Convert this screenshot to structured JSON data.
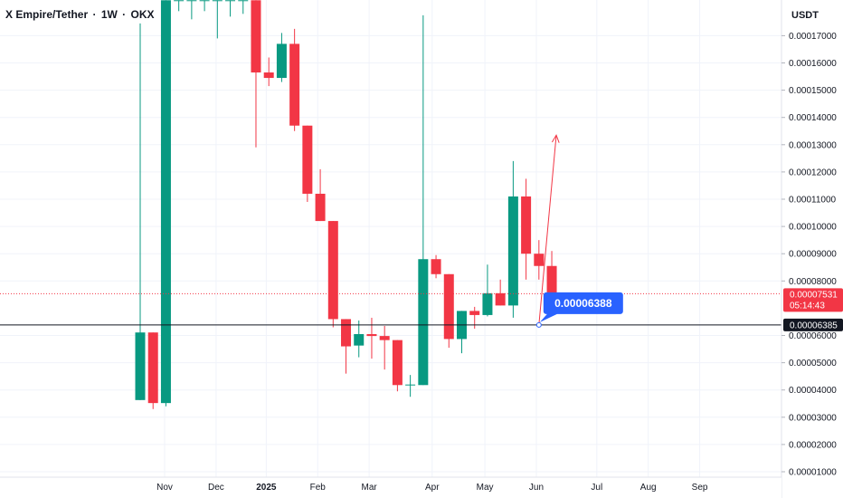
{
  "header": {
    "symbol": "X Empire/Tether",
    "interval": "1W",
    "exchange": "OKX"
  },
  "axis": {
    "currency": "USDT"
  },
  "colors": {
    "up": "#26a69a",
    "up_body": "#089981",
    "down": "#f23645",
    "grid": "#f0f3fa",
    "current_line": "#f23645",
    "callout": "#2962ff"
  },
  "chart_data": {
    "type": "candlestick",
    "ylim": [
      1e-05,
      0.000183
    ],
    "grid": true,
    "y_ticks": [
      {
        "value": 0.00017,
        "label": "0.00017000"
      },
      {
        "value": 0.00016,
        "label": "0.00016000"
      },
      {
        "value": 0.00015,
        "label": "0.00015000"
      },
      {
        "value": 0.00014,
        "label": "0.00014000"
      },
      {
        "value": 0.00013,
        "label": "0.00013000"
      },
      {
        "value": 0.00012,
        "label": "0.00012000"
      },
      {
        "value": 0.00011,
        "label": "0.00011000"
      },
      {
        "value": 0.0001,
        "label": "0.00010000"
      },
      {
        "value": 9e-05,
        "label": "0.00009000"
      },
      {
        "value": 8e-05,
        "label": "0.00008000"
      },
      {
        "value": 6e-05,
        "label": "0.00006000"
      },
      {
        "value": 5e-05,
        "label": "0.00005000"
      },
      {
        "value": 4e-05,
        "label": "0.00004000"
      },
      {
        "value": 3e-05,
        "label": "0.00003000"
      },
      {
        "value": 2e-05,
        "label": "0.00002000"
      },
      {
        "value": 1e-05,
        "label": "0.00001000"
      }
    ],
    "x_ticks": [
      {
        "label": "Nov",
        "index": 1.9,
        "bold": false
      },
      {
        "label": "Dec",
        "index": 5.9,
        "bold": false
      },
      {
        "label": "2025",
        "index": 9.8,
        "bold": true
      },
      {
        "label": "Feb",
        "index": 13.8,
        "bold": false
      },
      {
        "label": "Mar",
        "index": 17.8,
        "bold": false
      },
      {
        "label": "Apr",
        "index": 22.7,
        "bold": false
      },
      {
        "label": "May",
        "index": 26.8,
        "bold": false
      },
      {
        "label": "Jun",
        "index": 30.8,
        "bold": false
      },
      {
        "label": "Jul",
        "index": 35.5,
        "bold": false
      },
      {
        "label": "Aug",
        "index": 39.5,
        "bold": false
      },
      {
        "label": "Sep",
        "index": 43.5,
        "bold": false
      }
    ],
    "candles": [
      {
        "o": 3.63e-05,
        "h": 0.0001745,
        "l": 3.63e-05,
        "c": 6.11e-05
      },
      {
        "o": 6.11e-05,
        "h": 6.11e-05,
        "l": 3.3e-05,
        "c": 3.52e-05
      },
      {
        "o": 3.52e-05,
        "h": 0.000183,
        "l": 3.4e-05,
        "c": 0.000183
      },
      {
        "o": 0.000183,
        "h": 0.000183,
        "l": 0.000179,
        "c": 0.000183
      },
      {
        "o": 0.000183,
        "h": 0.000183,
        "l": 0.000176,
        "c": 0.000183
      },
      {
        "o": 0.000183,
        "h": 0.000183,
        "l": 0.000179,
        "c": 0.000183
      },
      {
        "o": 0.000183,
        "h": 0.000183,
        "l": 0.000169,
        "c": 0.000183
      },
      {
        "o": 0.000183,
        "h": 0.000183,
        "l": 0.000177,
        "c": 0.000183
      },
      {
        "o": 0.000183,
        "h": 0.000183,
        "l": 0.000178,
        "c": 0.000183
      },
      {
        "o": 0.000183,
        "h": 0.000183,
        "l": 0.000129,
        "c": 0.0001565
      },
      {
        "o": 0.0001565,
        "h": 0.000162,
        "l": 0.0001515,
        "c": 0.0001545
      },
      {
        "o": 0.0001545,
        "h": 0.000171,
        "l": 0.000153,
        "c": 0.000167
      },
      {
        "o": 0.000167,
        "h": 0.0001725,
        "l": 0.000135,
        "c": 0.000137
      },
      {
        "o": 0.000137,
        "h": 0.000137,
        "l": 0.000109,
        "c": 0.000112
      },
      {
        "o": 0.000112,
        "h": 0.000121,
        "l": 0.000102,
        "c": 0.000102
      },
      {
        "o": 0.000102,
        "h": 0.000102,
        "l": 6.3e-05,
        "c": 6.6e-05
      },
      {
        "o": 6.6e-05,
        "h": 6.6e-05,
        "l": 4.6e-05,
        "c": 5.6e-05
      },
      {
        "o": 5.63e-05,
        "h": 6.55e-05,
        "l": 5.2e-05,
        "c": 6.05e-05
      },
      {
        "o": 6.05e-05,
        "h": 6.65e-05,
        "l": 5.15e-05,
        "c": 5.98e-05
      },
      {
        "o": 5.98e-05,
        "h": 6.35e-05,
        "l": 4.75e-05,
        "c": 5.83e-05
      },
      {
        "o": 5.83e-05,
        "h": 5.83e-05,
        "l": 3.95e-05,
        "c": 4.18e-05
      },
      {
        "o": 4.18e-05,
        "h": 4.55e-05,
        "l": 3.75e-05,
        "c": 4.2e-05
      },
      {
        "o": 4.18e-05,
        "h": 0.0001775,
        "l": 4.18e-05,
        "c": 8.8e-05
      },
      {
        "o": 8.8e-05,
        "h": 8.95e-05,
        "l": 8.1e-05,
        "c": 8.25e-05
      },
      {
        "o": 8.25e-05,
        "h": 8.25e-05,
        "l": 5.55e-05,
        "c": 5.87e-05
      },
      {
        "o": 5.87e-05,
        "h": 6.9e-05,
        "l": 5.35e-05,
        "c": 6.9e-05
      },
      {
        "o": 6.9e-05,
        "h": 7.05e-05,
        "l": 6.25e-05,
        "c": 6.75e-05
      },
      {
        "o": 6.75e-05,
        "h": 8.6e-05,
        "l": 6.7e-05,
        "c": 7.55e-05
      },
      {
        "o": 7.55e-05,
        "h": 8.05e-05,
        "l": 7.1e-05,
        "c": 7.1e-05
      },
      {
        "o": 7.1e-05,
        "h": 0.000124,
        "l": 6.65e-05,
        "c": 0.000111
      },
      {
        "o": 0.000111,
        "h": 0.0001175,
        "l": 8.05e-05,
        "c": 9e-05
      },
      {
        "o": 9e-05,
        "h": 9.5e-05,
        "l": 8.05e-05,
        "c": 8.55e-05
      },
      {
        "o": 8.55e-05,
        "h": 9.1e-05,
        "l": 7e-05,
        "c": 7.53e-05
      }
    ],
    "current_price": {
      "value": 7.531e-05,
      "label": "0.00007531",
      "countdown": "05:14:43"
    },
    "horizontal_line": {
      "value": 6.385e-05,
      "label": "0.00006385"
    },
    "callout": {
      "value": 6.388e-05,
      "label": "0.00006388",
      "index": 31.0
    },
    "arrow": {
      "from_index": 31.0,
      "from_value": 6.388e-05,
      "to_index": 32.35,
      "to_value": 0.0001335
    }
  }
}
